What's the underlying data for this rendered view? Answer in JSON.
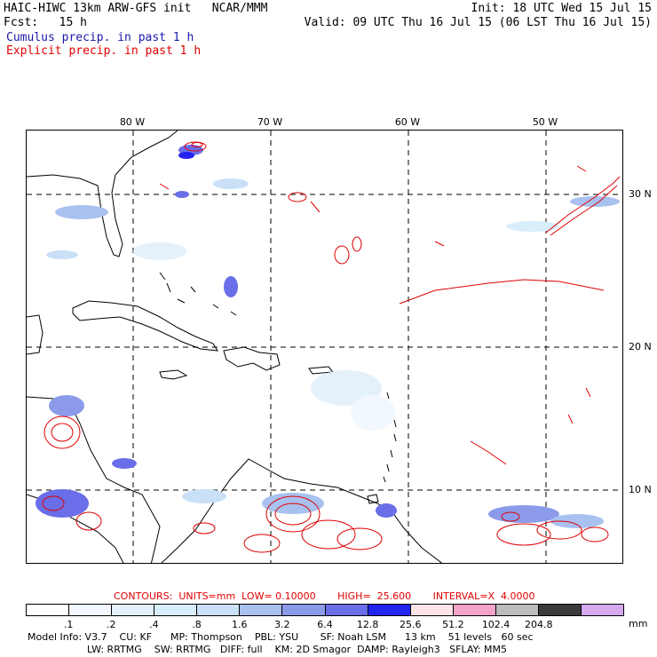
{
  "header": {
    "line1_left": "HAIC-HIWC 13km ARW-GFS init   NCAR/MMM",
    "line1_right": "Init: 18 UTC Wed 15 Jul 15",
    "line2_left": "Fcst:   15 h",
    "line2_right": "Valid: 09 UTC Thu 16 Jul 15 (06 LST Thu 16 Jul 15)",
    "cumulus_label": "Cumulus precip. in past 1 h",
    "explicit_label": "Explicit precip. in past 1 h"
  },
  "map": {
    "lon_labels": [
      "80 W",
      "70 W",
      "60 W",
      "50 W"
    ],
    "lat_labels": [
      "30 N",
      "20 N",
      "10 N"
    ]
  },
  "contours_line": "CONTOURS:  UNITS=mm  LOW= 0.10000       HIGH=  25.600       INTERVAL=X  4.0000",
  "legend": {
    "colors": [
      "#ffffff",
      "#f2f8ff",
      "#e4f1fb",
      "#d8eefa",
      "#c9e0f6",
      "#a9c1ef",
      "#8b9bea",
      "#6a6ee8",
      "#2424f0",
      "#fce4e9",
      "#f5a4c8",
      "#bdbdbd",
      "#3a3a3a",
      "#d6a8f0"
    ],
    "ticks": [
      ".1",
      ".2",
      ".4",
      ".8",
      "1.6",
      "3.2",
      "6.4",
      "12.8",
      "25.6",
      "51.2",
      "102.4",
      "204.8"
    ],
    "unit": "mm"
  },
  "model_info": {
    "line1": "Model Info: V3.7    CU: KF      MP: Thompson    PBL: YSU       SF: Noah LSM      13 km    51 levels   60 sec",
    "line2": "LW: RRTMG    SW: RRTMG   DIFF: full    KM: 2D Smagor  DAMP: Rayleigh3   SFLAY: MM5"
  }
}
